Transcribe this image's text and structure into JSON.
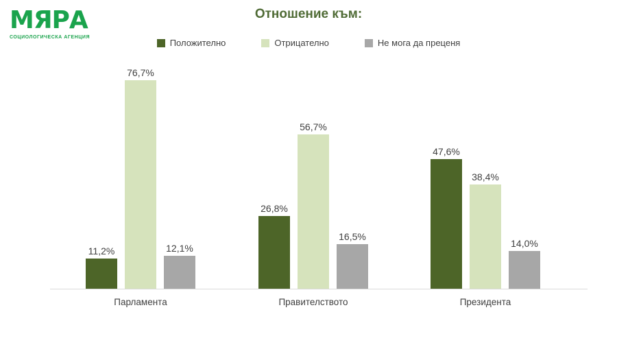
{
  "logo": {
    "title": "МЯРА",
    "subtitle": "СОЦИОЛОГИЧЕСКА АГЕНЦИЯ",
    "brand_color": "#1aa34c"
  },
  "chart_data": {
    "type": "bar",
    "title": "Отношение към:",
    "title_color": "#4f6b35",
    "categories": [
      "Парламента",
      "Правителството",
      "Президента"
    ],
    "series": [
      {
        "name": "Положително",
        "color": "#4d6528",
        "values": [
          11.2,
          26.8,
          47.6
        ],
        "labels": [
          "11,2%",
          "26,8%",
          "47,6%"
        ]
      },
      {
        "name": "Отрицателно",
        "color": "#d6e3bc",
        "values": [
          76.7,
          56.7,
          38.4
        ],
        "labels": [
          "76,7%",
          "56,7%",
          "38,4%"
        ]
      },
      {
        "name": "Не мога да преценя",
        "color": "#a7a7a7",
        "values": [
          12.1,
          16.5,
          14.0
        ],
        "labels": [
          "12,1%",
          "16,5%",
          "14,0%"
        ]
      }
    ],
    "ylim": [
      0,
      100
    ],
    "grid": false,
    "legend_position": "top",
    "axis_line_color": "#d9d9d9",
    "label_color": "#404040",
    "value_format": "percent-comma"
  }
}
